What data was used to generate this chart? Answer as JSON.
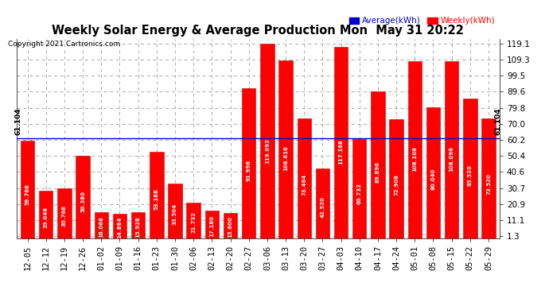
{
  "title": "Weekly Solar Energy & Average Production Mon  May 31 20:22",
  "copyright": "Copyright 2021 Cartronics.com",
  "legend_average": "Average(kWh)",
  "legend_weekly": "Weekly(kWh)",
  "categories": [
    "12-05",
    "12-12",
    "12-19",
    "12-26",
    "01-02",
    "01-09",
    "01-16",
    "01-23",
    "01-30",
    "02-06",
    "02-13",
    "02-20",
    "02-27",
    "03-06",
    "03-13",
    "03-20",
    "03-27",
    "04-03",
    "04-10",
    "04-17",
    "04-24",
    "05-01",
    "05-08",
    "05-15",
    "05-22",
    "05-29"
  ],
  "values": [
    59.768,
    29.048,
    30.768,
    50.38,
    16.068,
    14.884,
    15.928,
    53.168,
    33.504,
    21.732,
    17.18,
    15.6,
    91.996,
    119.092,
    108.616,
    73.464,
    42.52,
    117.168,
    60.732,
    89.896,
    72.908,
    108.108,
    80.04,
    108.096,
    85.52,
    73.52
  ],
  "average": 61.104,
  "bar_color": "#FF0000",
  "avg_line_color": "#0000CC",
  "yticks": [
    1.3,
    11.1,
    20.9,
    30.7,
    40.6,
    50.4,
    60.2,
    70.0,
    79.8,
    89.6,
    99.5,
    109.3,
    119.1
  ],
  "ylim": [
    0,
    122
  ],
  "background_color": "#FFFFFF",
  "grid_color": "#AAAAAA",
  "title_color": "#000000",
  "bar_edge_color": "#CC0000",
  "avg_label": "61.104",
  "avg_label_color": "#000000",
  "value_label_color": "#FFFFFF",
  "tick_fontsize": 7.5,
  "bar_value_fontsize": 5.0,
  "avg_label_fontsize": 6.5
}
